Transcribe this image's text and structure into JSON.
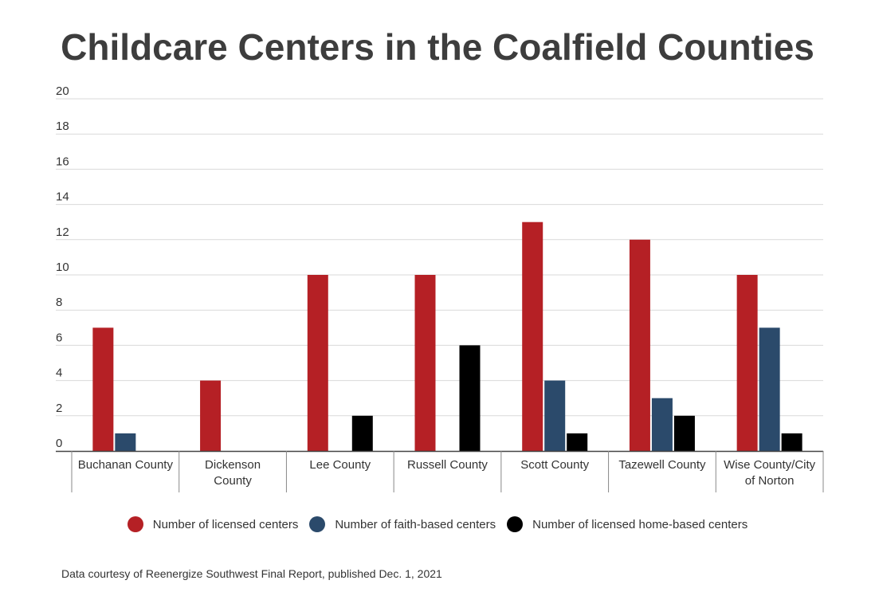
{
  "chart_data": {
    "type": "bar",
    "title": "Childcare Centers in the Coalfield Counties",
    "categories": [
      "Buchanan County",
      "Dickenson County",
      "Lee County",
      "Russell County",
      "Scott County",
      "Tazewell County",
      "Wise County/City of Norton"
    ],
    "category_lines": [
      [
        "Buchanan County"
      ],
      [
        "Dickenson",
        "County"
      ],
      [
        "Lee County"
      ],
      [
        "Russell County"
      ],
      [
        "Scott County"
      ],
      [
        "Tazewell County"
      ],
      [
        "Wise County/City",
        "of Norton"
      ]
    ],
    "series": [
      {
        "name": "Number of licensed centers",
        "color": "#b52025",
        "values": [
          7,
          4,
          10,
          10,
          13,
          12,
          10
        ]
      },
      {
        "name": "Number of faith-based centers",
        "color": "#2b4a6b",
        "values": [
          1,
          0,
          0,
          0,
          4,
          3,
          7
        ]
      },
      {
        "name": "Number of licensed home-based centers",
        "color": "#000000",
        "values": [
          0,
          0,
          2,
          6,
          1,
          2,
          1
        ]
      }
    ],
    "ylim": [
      0,
      20
    ],
    "yticks": [
      0,
      2,
      4,
      6,
      8,
      10,
      12,
      14,
      16,
      18,
      20
    ],
    "grid": true,
    "legend": "bottom",
    "source": "Data courtesy of Reenergize Southwest Final Report, published Dec. 1, 2021"
  }
}
